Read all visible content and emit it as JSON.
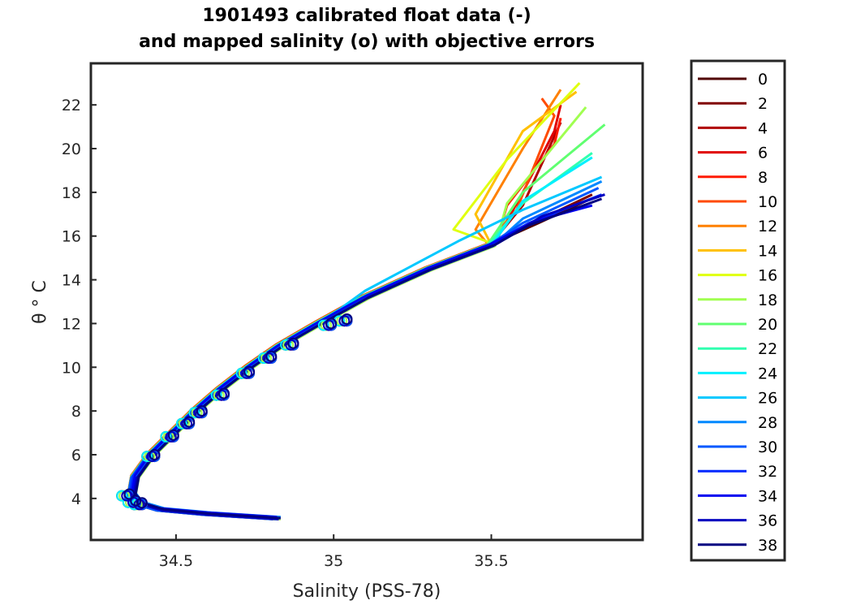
{
  "chart_data": {
    "type": "line",
    "title": [
      "1901493 calibrated float data (-)",
      "and mapped salinity (o) with objective errors"
    ],
    "xlabel": "Salinity (PSS-78)",
    "ylabel": "θ ° C",
    "xlim": [
      34.23,
      35.98
    ],
    "ylim": [
      2.1,
      23.9
    ],
    "xticks": [
      34.5,
      35,
      35.5
    ],
    "xtick_labels": [
      "34.5",
      "35",
      "35.5"
    ],
    "yticks": [
      4,
      6,
      8,
      10,
      12,
      14,
      16,
      18,
      20,
      22
    ],
    "ytick_labels": [
      "4",
      "6",
      "8",
      "10",
      "12",
      "14",
      "16",
      "18",
      "20",
      "22"
    ],
    "legend_position": "outside-right",
    "base_profile": [
      [
        34.82,
        3.1
      ],
      [
        34.6,
        3.3
      ],
      [
        34.45,
        3.5
      ],
      [
        34.38,
        3.8
      ],
      [
        34.36,
        4.2
      ],
      [
        34.37,
        5
      ],
      [
        34.42,
        6
      ],
      [
        34.49,
        7
      ],
      [
        34.56,
        8
      ],
      [
        34.64,
        9
      ],
      [
        34.73,
        10
      ],
      [
        34.83,
        11
      ],
      [
        34.95,
        12
      ],
      [
        35.1,
        13.2
      ],
      [
        35.3,
        14.5
      ],
      [
        35.5,
        15.6
      ]
    ],
    "series": [
      {
        "name": "0",
        "color": "#500000",
        "upper": [
          [
            35.65,
            16.6
          ],
          [
            35.8,
            17.6
          ]
        ]
      },
      {
        "name": "2",
        "color": "#800000",
        "upper": [
          [
            35.66,
            16.8
          ],
          [
            35.82,
            17.9
          ]
        ]
      },
      {
        "name": "4",
        "color": "#b00000",
        "upper": [
          [
            35.6,
            17.4
          ],
          [
            35.72,
            21.2
          ]
        ]
      },
      {
        "name": "6",
        "color": "#e00000",
        "upper": [
          [
            35.6,
            18
          ],
          [
            35.7,
            20.8
          ],
          [
            35.72,
            22
          ]
        ]
      },
      {
        "name": "8",
        "color": "#ff1a00",
        "upper": [
          [
            35.55,
            17.4
          ],
          [
            35.7,
            20.2
          ],
          [
            35.72,
            21.4
          ]
        ]
      },
      {
        "name": "10",
        "color": "#ff4a00",
        "upper": [
          [
            35.58,
            17.2
          ],
          [
            35.7,
            21.5
          ],
          [
            35.66,
            22.3
          ]
        ]
      },
      {
        "name": "12",
        "color": "#ff8000",
        "upper": [
          [
            35.45,
            16.3
          ],
          [
            35.6,
            20
          ],
          [
            35.72,
            22.7
          ]
        ]
      },
      {
        "name": "14",
        "color": "#ffc000",
        "upper": [
          [
            35.45,
            17
          ],
          [
            35.6,
            20.8
          ],
          [
            35.77,
            22.6
          ]
        ]
      },
      {
        "name": "16",
        "color": "#e0ff10",
        "upper": [
          [
            35.38,
            16.3
          ],
          [
            35.55,
            19.5
          ],
          [
            35.78,
            23
          ]
        ]
      },
      {
        "name": "18",
        "color": "#a0ff50",
        "upper": [
          [
            35.55,
            17.5
          ],
          [
            35.72,
            20.5
          ],
          [
            35.8,
            21.9
          ]
        ]
      },
      {
        "name": "20",
        "color": "#60ff70",
        "upper": [
          [
            35.6,
            18
          ],
          [
            35.86,
            21.1
          ]
        ]
      },
      {
        "name": "22",
        "color": "#30ffb0",
        "upper": [
          [
            35.6,
            17.5
          ],
          [
            35.82,
            19.8
          ]
        ]
      },
      {
        "name": "24",
        "color": "#00f0ff",
        "upper": [
          [
            35.6,
            17.6
          ],
          [
            35.82,
            19.6
          ]
        ]
      },
      {
        "name": "26",
        "color": "#00c8ff",
        "pre": [
          [
            35.1,
            13.5
          ],
          [
            35.4,
            15.8
          ]
        ],
        "upper": [
          [
            35.6,
            17.2
          ],
          [
            35.85,
            18.7
          ]
        ]
      },
      {
        "name": "28",
        "color": "#0088ff",
        "upper": [
          [
            35.6,
            16.8
          ],
          [
            35.85,
            18.5
          ]
        ]
      },
      {
        "name": "30",
        "color": "#0058ff",
        "upper": [
          [
            35.6,
            16.6
          ],
          [
            35.84,
            18.2
          ]
        ]
      },
      {
        "name": "32",
        "color": "#0028ff",
        "upper": [
          [
            35.62,
            16.6
          ],
          [
            35.85,
            17.9
          ]
        ]
      },
      {
        "name": "34",
        "color": "#0000f0",
        "upper": [
          [
            35.64,
            16.7
          ],
          [
            35.82,
            17.4
          ]
        ]
      },
      {
        "name": "36",
        "color": "#0000c0",
        "upper": [
          [
            35.66,
            16.9
          ],
          [
            35.86,
            17.9
          ]
        ]
      },
      {
        "name": "38",
        "color": "#000080",
        "upper": [
          [
            35.62,
            16.5
          ],
          [
            35.85,
            17.7
          ]
        ]
      }
    ],
    "mapped_points": [
      [
        34.34,
        4.2
      ],
      [
        34.36,
        3.9
      ],
      [
        34.38,
        3.8
      ],
      [
        34.42,
        6.0
      ],
      [
        34.48,
        6.9
      ],
      [
        34.53,
        7.5
      ],
      [
        34.57,
        8.0
      ],
      [
        34.64,
        8.8
      ],
      [
        34.72,
        9.8
      ],
      [
        34.79,
        10.5
      ],
      [
        34.86,
        11.1
      ],
      [
        34.98,
        12.0
      ],
      [
        35.03,
        12.2
      ]
    ]
  }
}
